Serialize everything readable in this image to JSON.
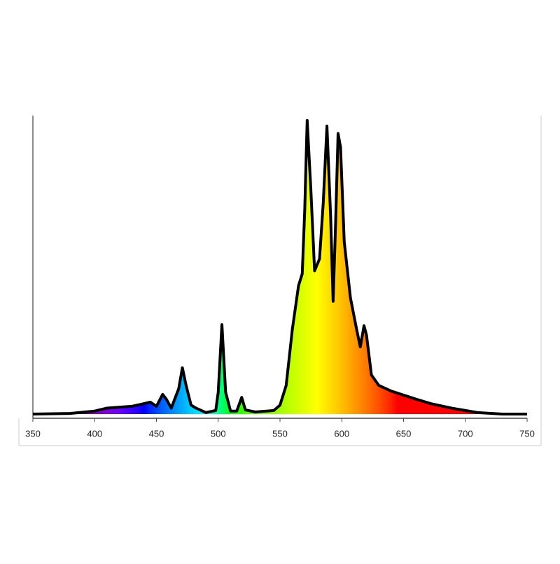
{
  "chart_data": {
    "type": "area",
    "x": [
      350,
      380,
      400,
      410,
      430,
      440,
      445,
      450,
      455,
      458,
      462,
      468,
      471,
      474,
      478,
      482,
      490,
      498,
      500,
      503,
      506,
      510,
      515,
      519,
      522,
      530,
      545,
      550,
      555,
      560,
      565,
      568,
      570,
      572,
      575,
      578,
      582,
      585,
      588,
      591,
      593,
      595,
      597,
      599,
      602,
      607,
      612,
      615,
      618,
      620,
      624,
      630,
      640,
      660,
      672,
      690,
      710,
      730,
      750
    ],
    "values": [
      0,
      0.2,
      1,
      2,
      2.6,
      3.5,
      4,
      2.6,
      6.6,
      5,
      2,
      8.5,
      15.5,
      9.6,
      3,
      2,
      0.5,
      1.2,
      7.3,
      30,
      7.3,
      1,
      1,
      5.6,
      1.4,
      0.7,
      1.2,
      3,
      9.6,
      28.4,
      43,
      47,
      68,
      98.4,
      75,
      48,
      52,
      70.7,
      96.5,
      66,
      37.8,
      63.6,
      94,
      89.4,
      57.7,
      39,
      28.4,
      22.5,
      29.6,
      26.5,
      13.1,
      9.6,
      7.7,
      5,
      3.5,
      1.9,
      0.5,
      0,
      0
    ],
    "color": "#000000",
    "xlim": [
      350,
      750
    ],
    "xticks": [
      350,
      400,
      450,
      500,
      550,
      600,
      650,
      700,
      750
    ],
    "ylim": [
      0,
      100
    ]
  }
}
